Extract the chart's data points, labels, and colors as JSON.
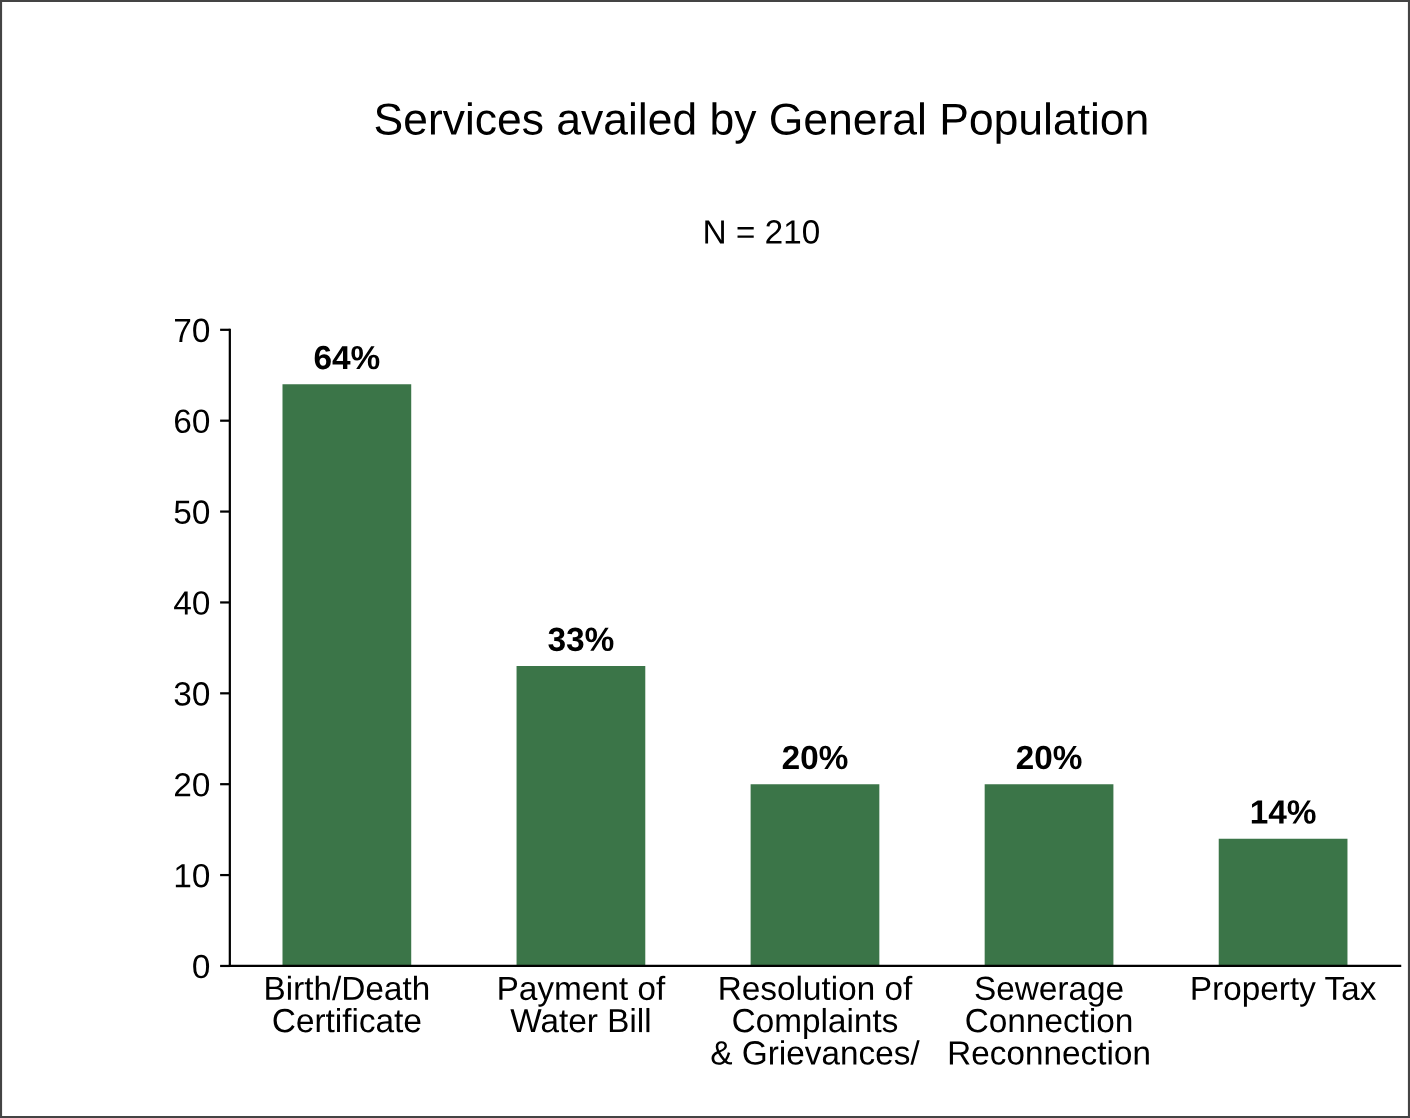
{
  "chart_data": {
    "type": "bar",
    "title": "Services availed by General Population",
    "subtitle": "N = 210",
    "categories": [
      "Birth/Death\nCertificate",
      "Payment of\nWater Bill",
      "Resolution of\nComplaints\n& Grievances/",
      "Sewerage\nConnection\nReconnection",
      "Property Tax"
    ],
    "values": [
      64,
      33,
      20,
      20,
      14
    ],
    "value_labels": [
      "64%",
      "33%",
      "20%",
      "20%",
      "14%"
    ],
    "color": "#3b7548",
    "ylim": [
      0,
      70
    ],
    "yticks": [
      0,
      10,
      20,
      30,
      40,
      50,
      60,
      70
    ],
    "grid": false,
    "legend": false
  }
}
